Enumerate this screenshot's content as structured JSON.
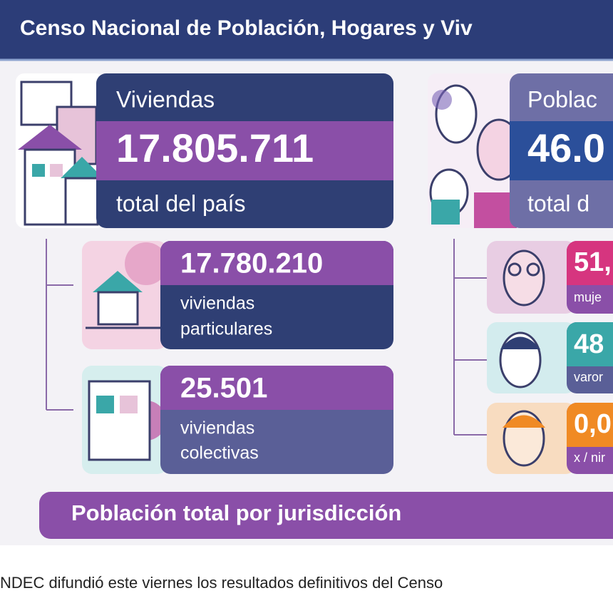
{
  "header": {
    "title": "Censo Nacional de Población, Hogares y Viv"
  },
  "viviendas": {
    "label": "Viviendas",
    "total": "17.805.711",
    "sublabel": "total del país",
    "items": [
      {
        "value": "17.780.210",
        "lines": [
          "viviendas",
          "particulares"
        ]
      },
      {
        "value": "25.501",
        "lines": [
          "viviendas",
          "colectivas"
        ]
      }
    ]
  },
  "poblacion": {
    "label": "Poblac",
    "total": "46.0",
    "sublabel": "total d",
    "items": [
      {
        "value": "51,",
        "label": "muje"
      },
      {
        "value": "48",
        "label": "varor"
      },
      {
        "value": "0,0",
        "label": "x / nir"
      }
    ]
  },
  "footer": {
    "title": "Población total por jurisdicción"
  },
  "caption": {
    "text": "NDEC difundió este viernes los resultados definitivos del Censo"
  }
}
